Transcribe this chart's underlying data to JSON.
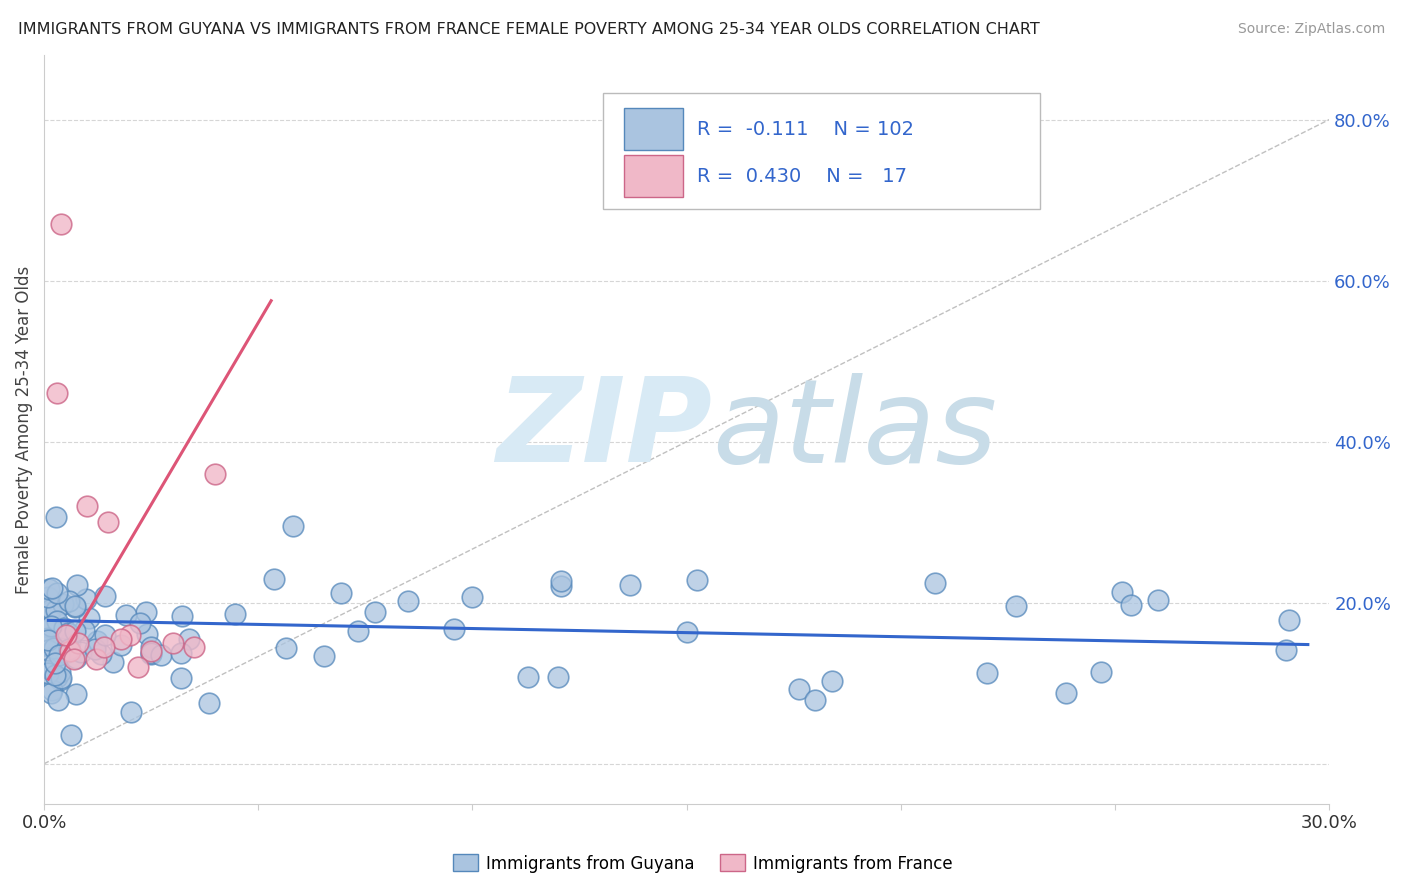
{
  "title": "IMMIGRANTS FROM GUYANA VS IMMIGRANTS FROM FRANCE FEMALE POVERTY AMONG 25-34 YEAR OLDS CORRELATION CHART",
  "source": "Source: ZipAtlas.com",
  "ylabel": "Female Poverty Among 25-34 Year Olds",
  "xlim": [
    0.0,
    0.3
  ],
  "ylim": [
    -0.05,
    0.88
  ],
  "y_ticks_right": [
    0.0,
    0.2,
    0.4,
    0.6,
    0.8
  ],
  "y_tick_labels_right": [
    "",
    "20.0%",
    "40.0%",
    "60.0%",
    "80.0%"
  ],
  "background_color": "#ffffff",
  "grid_color": "#cccccc",
  "watermark_zip": "ZIP",
  "watermark_atlas": "atlas",
  "watermark_color": "#d8eaf5",
  "guyana_color": "#aac4e0",
  "guyana_edge_color": "#5588bb",
  "france_color": "#f0b8c8",
  "france_edge_color": "#cc6688",
  "guyana_line_color": "#3366cc",
  "france_line_color": "#dd5577",
  "ref_line_color": "#c0c0c0",
  "legend_R_guyana": "-0.111",
  "legend_N_guyana": "102",
  "legend_R_france": "0.430",
  "legend_N_france": "17"
}
